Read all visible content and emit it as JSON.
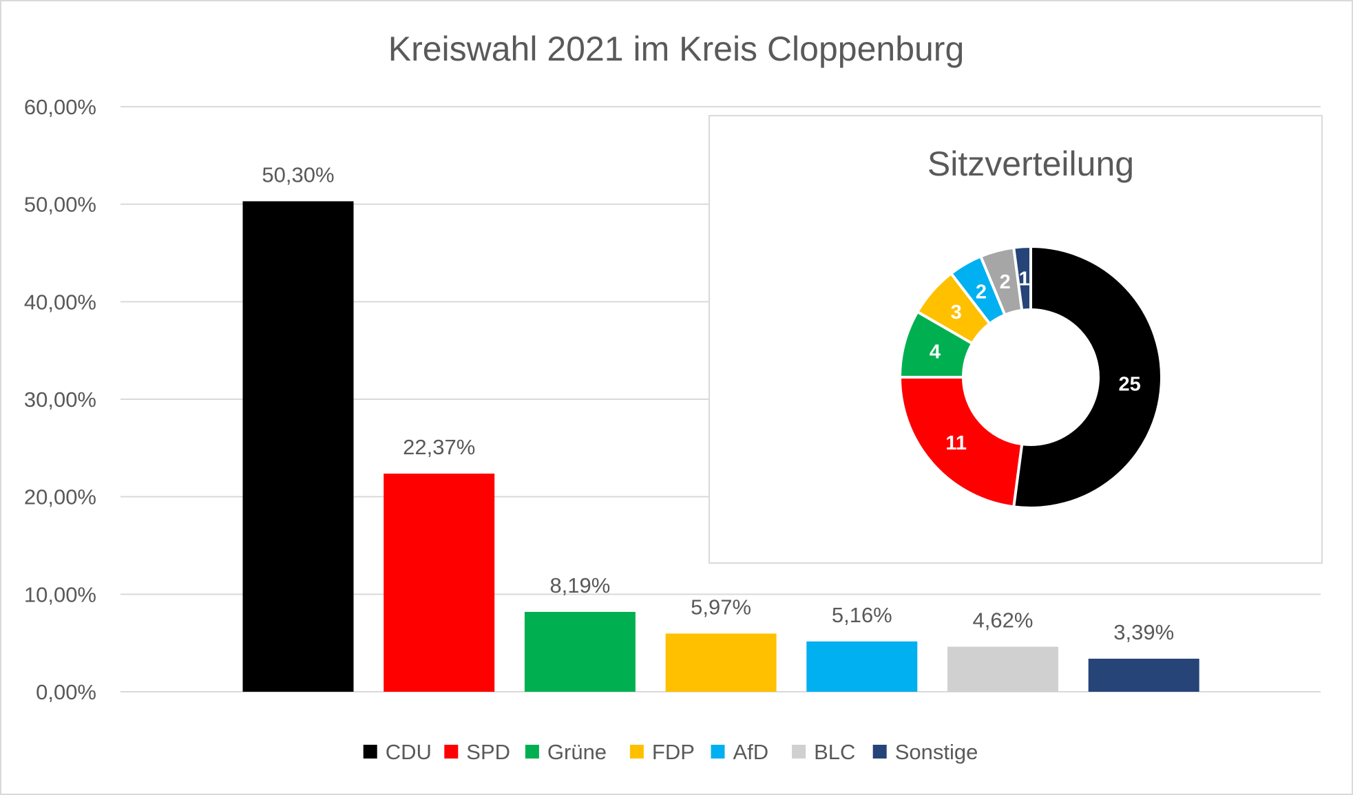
{
  "colors": {
    "CDU": "#000000",
    "SPD": "#ff0000",
    "Grüne": "#00b050",
    "FDP": "#ffc000",
    "AfD": "#00b0f0",
    "BLC": "#d0d0d0",
    "Sonstige": "#264478",
    "BLC_pie": "#a6a6a6"
  },
  "chart_data": [
    {
      "type": "bar",
      "title": "Kreiswahl 2021 im Kreis Cloppenburg",
      "categories": [
        "CDU",
        "SPD",
        "Grüne",
        "FDP",
        "AfD",
        "BLC",
        "Sonstige"
      ],
      "values": [
        50.3,
        22.37,
        8.19,
        5.97,
        5.16,
        4.62,
        3.39
      ],
      "data_labels": [
        "50,30%",
        "22,37%",
        "8,19%",
        "5,97%",
        "5,16%",
        "4,62%",
        "3,39%"
      ],
      "yticks": [
        0,
        10,
        20,
        30,
        40,
        50,
        60
      ],
      "ytick_labels": [
        "0,00%",
        "10,00%",
        "20,00%",
        "30,00%",
        "40,00%",
        "50,00%",
        "60,00%"
      ],
      "ylim": [
        0,
        60
      ],
      "grid": true,
      "legend": {
        "placement": "bottom",
        "entries": [
          "CDU",
          "SPD",
          "Grüne",
          "FDP",
          "AfD",
          "BLC",
          "Sonstige"
        ]
      }
    },
    {
      "type": "pie",
      "donut": true,
      "title": "Sitzverteilung",
      "categories": [
        "CDU",
        "SPD",
        "Grüne",
        "FDP",
        "AfD",
        "BLC",
        "Sonstige"
      ],
      "values": [
        25,
        11,
        4,
        3,
        2,
        2,
        1
      ],
      "data_labels": [
        "25",
        "11",
        "4",
        "3",
        "2",
        "2",
        "1"
      ]
    }
  ]
}
